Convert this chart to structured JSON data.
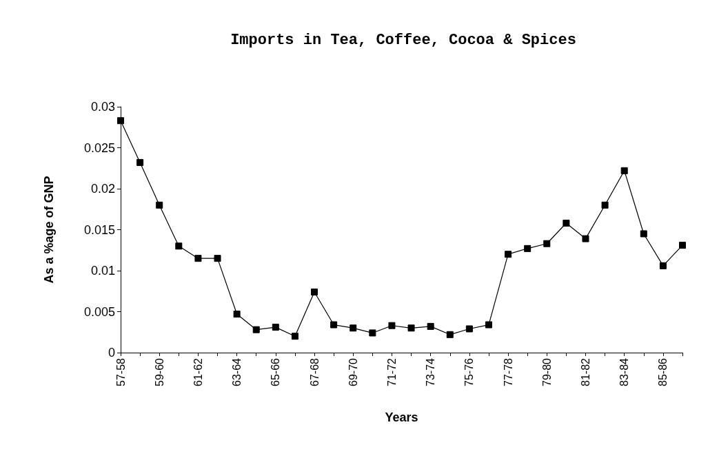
{
  "chart_data": {
    "type": "line",
    "title": "Imports in Tea, Coffee, Cocoa & Spices",
    "xlabel": "Years",
    "ylabel": "As a %age of GNP",
    "categories": [
      "57-58",
      null,
      "59-60",
      null,
      "61-62",
      null,
      "63-64",
      null,
      "65-66",
      null,
      "67-68",
      null,
      "69-70",
      null,
      "71-72",
      null,
      "73-74",
      null,
      "75-76",
      null,
      "77-78",
      null,
      "79-80",
      null,
      "81-82",
      null,
      "83-84",
      null,
      "85-86",
      null
    ],
    "series": [
      {
        "color": "#000000",
        "values": [
          0.0283,
          0.0232,
          0.018,
          0.013,
          0.0115,
          0.0115,
          0.0047,
          0.0028,
          0.0031,
          0.002,
          0.0074,
          0.0034,
          0.003,
          0.0024,
          0.0033,
          0.003,
          0.0032,
          0.0022,
          0.0029,
          0.0034,
          0.012,
          0.0127,
          0.0133,
          0.0158,
          0.0139,
          0.018,
          0.0222,
          0.0145,
          0.0106,
          0.0131
        ]
      }
    ],
    "ylim": [
      0,
      0.03
    ],
    "yticks": [
      0,
      0.005,
      0.01,
      0.015,
      0.02,
      0.025,
      0.03
    ],
    "grid": false,
    "marker": "square",
    "line_style": "solid"
  }
}
